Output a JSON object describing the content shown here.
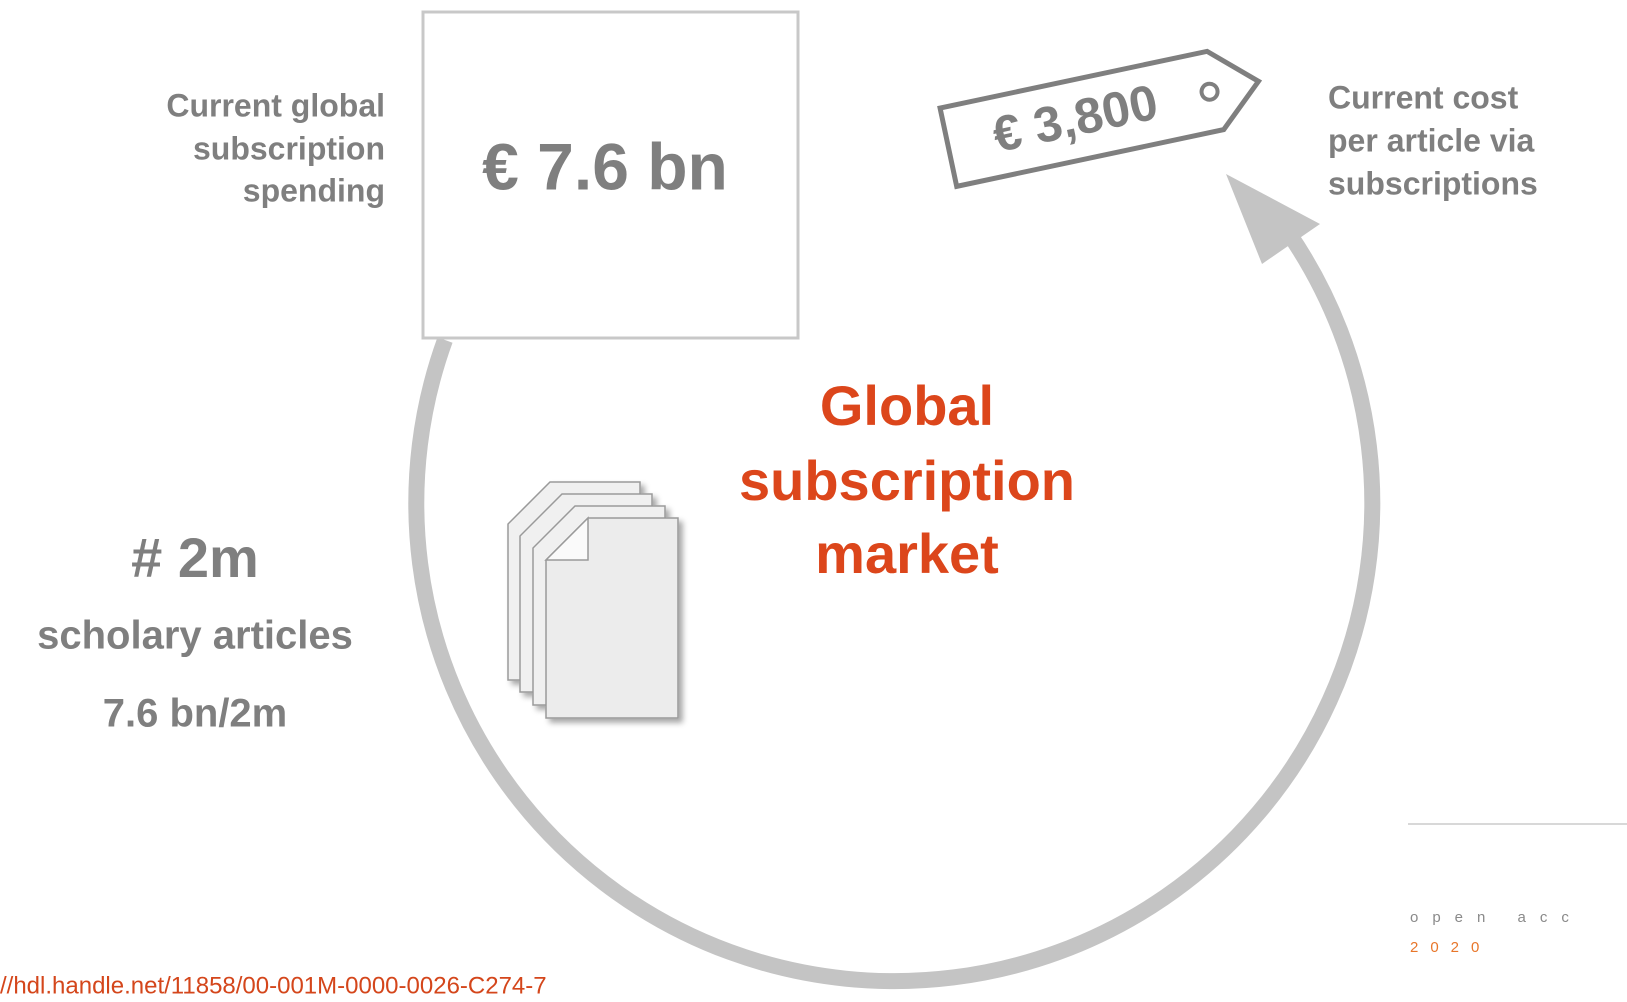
{
  "spending": {
    "label": [
      "Current global",
      "subscription",
      "spending"
    ],
    "amount": "€ 7.6 bn"
  },
  "cost": {
    "label": [
      "Current cost",
      "per article via",
      "subscriptions"
    ],
    "price": "€ 3,800"
  },
  "market": [
    "Global",
    "subscription",
    "market"
  ],
  "articles": {
    "count": "# 2m",
    "label": "scholary articles",
    "formula": "7.6 bn/2m"
  },
  "link": "//hdl.handle.net/11858/00-001M-0000-0026-C274-7",
  "footer": {
    "brand": "open acc",
    "year": "2020"
  }
}
